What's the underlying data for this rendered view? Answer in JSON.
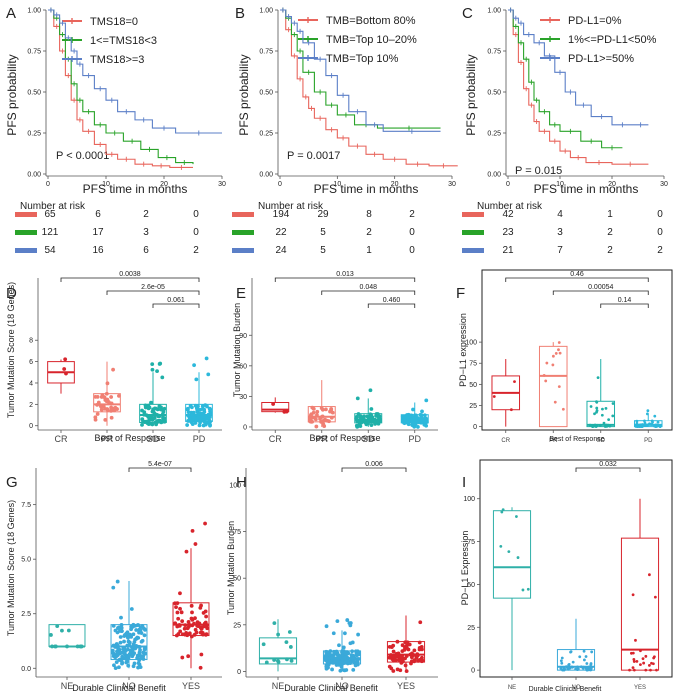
{
  "colors": {
    "red": "#e8655c",
    "green": "#29a329",
    "blue": "#5b7fc7",
    "cr": "#d8242c",
    "pr": "#f07f73",
    "sd": "#1fb0a8",
    "pd": "#2cb8db",
    "ne": "#2fb0a8",
    "no": "#3aa9d9",
    "yes": "#d8242c"
  },
  "chart_data": [
    {
      "id": "A",
      "type": "line",
      "panel_label": "A",
      "ylabel": "PFS probability",
      "xlabel": "PFS time in months",
      "xlim": [
        0,
        30
      ],
      "ylim": [
        0,
        1
      ],
      "xticks": [
        0,
        10,
        20,
        30
      ],
      "yticks": [
        0.0,
        0.25,
        0.5,
        0.75,
        1.0
      ],
      "ytick_labels": [
        "0.00",
        "0.25",
        "0.50",
        "0.75",
        "1.00"
      ],
      "annotation": "P < 0.0001",
      "series": [
        {
          "name": "TMS18=0",
          "color": "red",
          "steps": [
            [
              0,
              1
            ],
            [
              1,
              0.9
            ],
            [
              2,
              0.75
            ],
            [
              3,
              0.6
            ],
            [
              4,
              0.45
            ],
            [
              5,
              0.33
            ],
            [
              6,
              0.26
            ],
            [
              8,
              0.18
            ],
            [
              10,
              0.12
            ],
            [
              12,
              0.09
            ],
            [
              15,
              0.06
            ],
            [
              18,
              0.05
            ],
            [
              21,
              0.04
            ],
            [
              25,
              0.04
            ]
          ]
        },
        {
          "name": "1<=TMS18<3",
          "color": "green",
          "steps": [
            [
              0,
              1
            ],
            [
              1,
              0.95
            ],
            [
              2,
              0.85
            ],
            [
              3,
              0.7
            ],
            [
              4,
              0.55
            ],
            [
              5,
              0.45
            ],
            [
              6,
              0.38
            ],
            [
              8,
              0.3
            ],
            [
              10,
              0.25
            ],
            [
              13,
              0.2
            ],
            [
              16,
              0.15
            ],
            [
              19,
              0.1
            ],
            [
              22,
              0.07
            ],
            [
              25,
              0.06
            ]
          ]
        },
        {
          "name": "TMS18>=3",
          "color": "blue",
          "steps": [
            [
              0,
              1
            ],
            [
              1,
              0.97
            ],
            [
              2,
              0.92
            ],
            [
              3,
              0.83
            ],
            [
              4,
              0.75
            ],
            [
              5,
              0.67
            ],
            [
              6,
              0.6
            ],
            [
              8,
              0.52
            ],
            [
              10,
              0.45
            ],
            [
              12,
              0.38
            ],
            [
              15,
              0.33
            ],
            [
              18,
              0.28
            ],
            [
              22,
              0.25
            ],
            [
              30,
              0.25
            ]
          ]
        }
      ],
      "risk_title": "Number at risk",
      "risk": [
        [
          "65",
          "6",
          "2",
          "0"
        ],
        [
          "121",
          "17",
          "3",
          "0"
        ],
        [
          "54",
          "16",
          "6",
          "2"
        ]
      ]
    },
    {
      "id": "B",
      "type": "line",
      "panel_label": "B",
      "ylabel": "PFS probability",
      "xlabel": "PFS time in months",
      "xlim": [
        0,
        30
      ],
      "ylim": [
        0,
        1
      ],
      "xticks": [
        0,
        10,
        20,
        30
      ],
      "yticks": [
        0.0,
        0.25,
        0.5,
        0.75,
        1.0
      ],
      "ytick_labels": [
        "0.00",
        "0.25",
        "0.50",
        "0.75",
        "1.00"
      ],
      "annotation": "P = 0.0017",
      "series": [
        {
          "name": "TMB=Bottom 80%",
          "color": "red",
          "steps": [
            [
              0,
              1
            ],
            [
              1,
              0.88
            ],
            [
              2,
              0.72
            ],
            [
              3,
              0.58
            ],
            [
              4,
              0.47
            ],
            [
              5,
              0.4
            ],
            [
              6,
              0.34
            ],
            [
              8,
              0.27
            ],
            [
              10,
              0.22
            ],
            [
              12,
              0.17
            ],
            [
              15,
              0.12
            ],
            [
              18,
              0.09
            ],
            [
              22,
              0.06
            ],
            [
              26,
              0.05
            ],
            [
              31,
              0.05
            ]
          ]
        },
        {
          "name": "TMB=Top 10–20%",
          "color": "green",
          "steps": [
            [
              0,
              1
            ],
            [
              1,
              0.95
            ],
            [
              2,
              0.85
            ],
            [
              3,
              0.75
            ],
            [
              4,
              0.62
            ],
            [
              6,
              0.5
            ],
            [
              8,
              0.42
            ],
            [
              10,
              0.36
            ],
            [
              13,
              0.3
            ],
            [
              17,
              0.28
            ],
            [
              28,
              0.28
            ]
          ]
        },
        {
          "name": "TMB=Top 10%",
          "color": "blue",
          "steps": [
            [
              0,
              1
            ],
            [
              1,
              0.96
            ],
            [
              2,
              0.92
            ],
            [
              3,
              0.87
            ],
            [
              4,
              0.8
            ],
            [
              6,
              0.7
            ],
            [
              8,
              0.6
            ],
            [
              10,
              0.48
            ],
            [
              12,
              0.38
            ],
            [
              15,
              0.3
            ],
            [
              18,
              0.26
            ],
            [
              28,
              0.26
            ]
          ]
        }
      ],
      "risk_title": "Number at risk",
      "risk": [
        [
          "194",
          "29",
          "8",
          "2"
        ],
        [
          "22",
          "5",
          "2",
          "0"
        ],
        [
          "24",
          "5",
          "1",
          "0"
        ]
      ]
    },
    {
      "id": "C",
      "type": "line",
      "panel_label": "C",
      "ylabel": "PFS probability",
      "xlabel": "PFS time in months",
      "xlim": [
        0,
        30
      ],
      "ylim": [
        0,
        1
      ],
      "xticks": [
        0,
        10,
        20,
        30
      ],
      "yticks": [
        0.0,
        0.25,
        0.5,
        0.75,
        1.0
      ],
      "ytick_labels": [
        "0.00",
        "0.25",
        "0.50",
        "0.75",
        "1.00"
      ],
      "annotation": "P = 0.015",
      "series": [
        {
          "name": "PD-L1=0%",
          "color": "red",
          "steps": [
            [
              0,
              1
            ],
            [
              1,
              0.85
            ],
            [
              2,
              0.68
            ],
            [
              3,
              0.52
            ],
            [
              4,
              0.42
            ],
            [
              5,
              0.32
            ],
            [
              6,
              0.26
            ],
            [
              8,
              0.2
            ],
            [
              10,
              0.14
            ],
            [
              12,
              0.1
            ],
            [
              15,
              0.07
            ],
            [
              20,
              0.06
            ],
            [
              27,
              0.06
            ]
          ]
        },
        {
          "name": "1%<=PD-L1<50%",
          "color": "green",
          "steps": [
            [
              0,
              1
            ],
            [
              1,
              0.9
            ],
            [
              2,
              0.8
            ],
            [
              3,
              0.7
            ],
            [
              4,
              0.56
            ],
            [
              5,
              0.45
            ],
            [
              6,
              0.38
            ],
            [
              8,
              0.3
            ],
            [
              10,
              0.26
            ],
            [
              14,
              0.2
            ],
            [
              18,
              0.16
            ],
            [
              22,
              0.16
            ]
          ]
        },
        {
          "name": "PD-L1>=50%",
          "color": "blue",
          "steps": [
            [
              0,
              1
            ],
            [
              1,
              0.95
            ],
            [
              2,
              0.92
            ],
            [
              3,
              0.85
            ],
            [
              5,
              0.8
            ],
            [
              7,
              0.72
            ],
            [
              9,
              0.62
            ],
            [
              11,
              0.5
            ],
            [
              13,
              0.42
            ],
            [
              16,
              0.35
            ],
            [
              20,
              0.3
            ],
            [
              24,
              0.3
            ],
            [
              27,
              0.3
            ]
          ]
        }
      ],
      "risk_title": "Number at risk",
      "risk": [
        [
          "42",
          "4",
          "1",
          "0"
        ],
        [
          "23",
          "3",
          "2",
          "0"
        ],
        [
          "21",
          "7",
          "2",
          "2"
        ]
      ]
    },
    {
      "id": "D",
      "type": "box",
      "panel_label": "D",
      "ylabel": "Tumor Mutation Score (18 Genes)",
      "xlabel": "Best of Response",
      "categories": [
        "CR",
        "PR",
        "SD",
        "PD"
      ],
      "colors": [
        "cr",
        "pr",
        "sd",
        "pd"
      ],
      "ylim": [
        -0.4,
        9.8
      ],
      "yticks": [
        0,
        2,
        4,
        6,
        8
      ],
      "ytick_labels": [
        "0",
        "2",
        "4",
        "6",
        "8"
      ],
      "boxes": [
        [
          3,
          4,
          5,
          6,
          6.2
        ],
        [
          0,
          1.3,
          2,
          3,
          6
        ],
        [
          0,
          0.3,
          1,
          2,
          5
        ],
        [
          0,
          0.4,
          1,
          2,
          5
        ]
      ],
      "n": [
        3,
        40,
        75,
        110
      ],
      "comparisons": [
        {
          "from": 0,
          "to": 3,
          "label": "0.0038"
        },
        {
          "from": 1,
          "to": 3,
          "label": "2.6e-05"
        },
        {
          "from": 2,
          "to": 3,
          "label": "0.061"
        }
      ]
    },
    {
      "id": "E",
      "type": "box",
      "panel_label": "E",
      "ylabel": "Tumor Mutation Burden",
      "xlabel": "Best of Response",
      "categories": [
        "CR",
        "PR",
        "SD",
        "PD"
      ],
      "colors": [
        "cr",
        "pr",
        "sd",
        "pd"
      ],
      "ylim": [
        -3,
        104
      ],
      "yticks": [
        0,
        30,
        60,
        90
      ],
      "ytick_labels": [
        "0",
        "30",
        "60",
        "90"
      ],
      "boxes": [
        [
          14,
          15,
          17,
          24,
          29
        ],
        [
          0,
          5,
          10,
          20,
          46
        ],
        [
          0,
          4,
          7,
          13,
          28
        ],
        [
          0,
          4,
          7,
          12,
          24
        ]
      ],
      "n": [
        3,
        40,
        75,
        110
      ],
      "comparisons": [
        {
          "from": 0,
          "to": 3,
          "label": "0.013"
        },
        {
          "from": 1,
          "to": 3,
          "label": "0.048"
        },
        {
          "from": 2,
          "to": 3,
          "label": "0.460"
        }
      ]
    },
    {
      "id": "F",
      "type": "box",
      "panel_label": "F",
      "ylabel": "PD−L1 expression",
      "xlabel": "Best of Response",
      "categories": [
        "CR",
        "PR",
        "SD",
        "PD"
      ],
      "colors": [
        "cr",
        "pr",
        "sd",
        "pd"
      ],
      "ylim": [
        -4,
        125
      ],
      "yticks": [
        0,
        25,
        50,
        75,
        100
      ],
      "ytick_labels": [
        "0",
        "25",
        "50",
        "75",
        "100"
      ],
      "boxes": [
        [
          0,
          20,
          40,
          60,
          80
        ],
        [
          0,
          0,
          60,
          95,
          100
        ],
        [
          0,
          0,
          2,
          30,
          80
        ],
        [
          0,
          0,
          2,
          7,
          15
        ]
      ],
      "n": [
        3,
        12,
        35,
        45
      ],
      "comparisons": [
        {
          "from": 0,
          "to": 3,
          "label": "0.46"
        },
        {
          "from": 1,
          "to": 3,
          "label": "0.00054"
        },
        {
          "from": 2,
          "to": 3,
          "label": "0.14"
        }
      ]
    },
    {
      "id": "G",
      "type": "box",
      "panel_label": "G",
      "ylabel": "Tumor Mutation Score (18 Genes)",
      "xlabel": "Durable Clinical Benefit",
      "categories": [
        "NE",
        "NO",
        "YES"
      ],
      "colors": [
        "ne",
        "no",
        "yes"
      ],
      "ylim": [
        -0.4,
        8.4
      ],
      "yticks": [
        0,
        2.5,
        5,
        7.5
      ],
      "ytick_labels": [
        "0.0",
        "2.5",
        "5.0",
        "7.5"
      ],
      "boxes": [
        [
          1,
          1,
          1,
          2,
          2
        ],
        [
          0,
          0.4,
          1,
          2,
          4
        ],
        [
          0,
          1.5,
          2,
          3,
          5.5
        ]
      ],
      "n": [
        12,
        150,
        75
      ],
      "comparisons": [
        {
          "from": 1,
          "to": 2,
          "label": "5.4e-07"
        }
      ]
    },
    {
      "id": "H",
      "type": "box",
      "panel_label": "H",
      "ylabel": "Tumor Mutation Burden",
      "xlabel": "Durable Clinical Benefit",
      "categories": [
        "NE",
        "NO",
        "YES"
      ],
      "colors": [
        "ne",
        "no",
        "yes"
      ],
      "ylim": [
        -3,
        100
      ],
      "yticks": [
        0,
        25,
        50,
        75,
        100
      ],
      "ytick_labels": [
        "0",
        "25",
        "50",
        "75",
        "100"
      ],
      "boxes": [
        [
          0,
          4,
          7,
          18,
          28
        ],
        [
          0,
          4,
          7,
          11,
          22
        ],
        [
          0,
          5,
          9,
          16,
          30
        ]
      ],
      "n": [
        12,
        150,
        75
      ],
      "comparisons": [
        {
          "from": 1,
          "to": 2,
          "label": "0.006"
        }
      ]
    },
    {
      "id": "I",
      "type": "box",
      "panel_label": "I",
      "ylabel": "PD−L1 Expression",
      "xlabel": "Durable Clinical Benefit",
      "categories": [
        "NE",
        "NO",
        "YES"
      ],
      "colors": [
        "ne",
        "no",
        "yes"
      ],
      "ylim": [
        -4,
        108
      ],
      "yticks": [
        0,
        25,
        50,
        75,
        100
      ],
      "ytick_labels": [
        "0",
        "25",
        "50",
        "75",
        "100"
      ],
      "boxes": [
        [
          0,
          42,
          60,
          93,
          95
        ],
        [
          0,
          0,
          2,
          12,
          30
        ],
        [
          0,
          0,
          12,
          77,
          100
        ]
      ],
      "n": [
        8,
        50,
        25
      ],
      "comparisons": [
        {
          "from": 1,
          "to": 2,
          "label": "0.032"
        }
      ]
    }
  ]
}
